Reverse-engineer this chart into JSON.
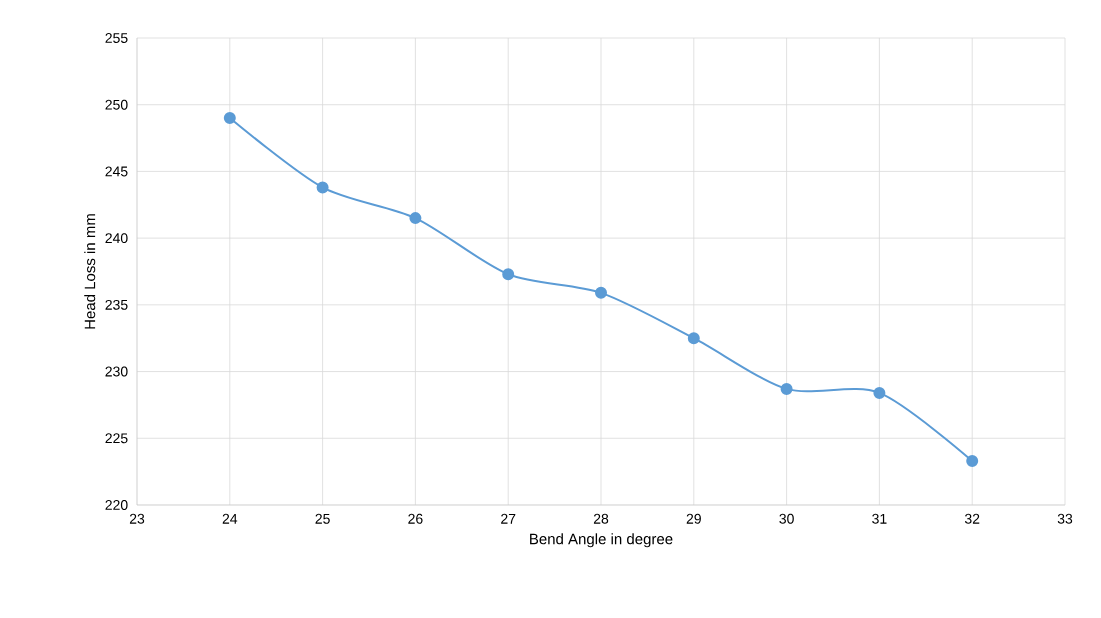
{
  "chart_data": {
    "type": "line",
    "xlabel": "Bend Angle in degree",
    "ylabel": "Head Loss in mm",
    "x": [
      24,
      25,
      26,
      27,
      28,
      29,
      30,
      31,
      32
    ],
    "series": [
      {
        "color": "#5b9bd5",
        "values": [
          249.0,
          243.8,
          241.5,
          237.3,
          235.9,
          232.5,
          228.7,
          228.4,
          223.3
        ]
      }
    ],
    "xlim": [
      23,
      33
    ],
    "xticks": [
      23,
      24,
      25,
      26,
      27,
      28,
      29,
      30,
      31,
      32,
      33
    ],
    "ylim": [
      220,
      255
    ],
    "yticks": [
      220,
      225,
      230,
      235,
      240,
      245,
      250,
      255
    ],
    "grid": true,
    "marker": "circle",
    "line_style": "solid",
    "legend": false
  }
}
